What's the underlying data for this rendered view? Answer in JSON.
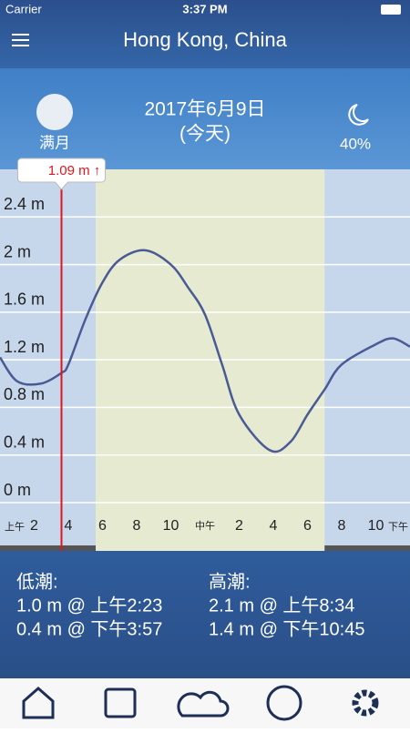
{
  "status": {
    "carrier": "Carrier",
    "time": "3:37 PM"
  },
  "header": {
    "title": "Hong Kong, China"
  },
  "info": {
    "moon_phase": "满月",
    "date": "2017年6月9日",
    "day": "(今天)",
    "illumination": "40%"
  },
  "chart_data": {
    "type": "line",
    "x": [
      0,
      1,
      2.4,
      3.6,
      4,
      5,
      6,
      7,
      8.5,
      10,
      11,
      12,
      13,
      14,
      15.8,
      17,
      18,
      19,
      20,
      22,
      23,
      24
    ],
    "values": [
      1.22,
      1.02,
      1.0,
      1.09,
      1.16,
      1.54,
      1.85,
      2.04,
      2.12,
      2.0,
      1.81,
      1.58,
      1.16,
      0.74,
      0.44,
      0.51,
      0.74,
      0.95,
      1.16,
      1.33,
      1.38,
      1.31
    ],
    "color": "#4a5a95",
    "xlim": [
      0,
      24
    ],
    "xticks": [
      2,
      4,
      6,
      8,
      10,
      {
        "value": 12,
        "label": "中午"
      },
      {
        "value": 14,
        "label": "2"
      },
      {
        "value": 16,
        "label": "4"
      },
      {
        "value": 18,
        "label": "6"
      },
      {
        "value": 20,
        "label": "8"
      },
      {
        "value": 22,
        "label": "10"
      }
    ],
    "x_annotations": [
      "上午",
      "下午"
    ],
    "ylim": [
      0,
      2.8
    ],
    "yticks": [
      {
        "value": 0,
        "label": "0 m"
      },
      {
        "value": 0.4,
        "label": "0.4 m"
      },
      {
        "value": 0.8,
        "label": "0.8 m"
      },
      {
        "value": 1.2,
        "label": "1.2 m"
      },
      {
        "value": 1.6,
        "label": "1.6 m"
      },
      {
        "value": 2,
        "label": "2 m"
      },
      {
        "value": 2.4,
        "label": "2.4 m"
      }
    ],
    "grid": true,
    "daylight": [
      5.6,
      19
    ],
    "cursor_x": 3.6,
    "cursor_label": "1.09 m ↑"
  },
  "tides": {
    "low_title": "低潮:",
    "low": [
      "1.0 m @ 上午2:23",
      "0.4 m @ 下午3:57"
    ],
    "high_title": "高潮:",
    "high": [
      "2.1 m @ 上午8:34",
      "1.4 m @ 下午10:45"
    ]
  }
}
